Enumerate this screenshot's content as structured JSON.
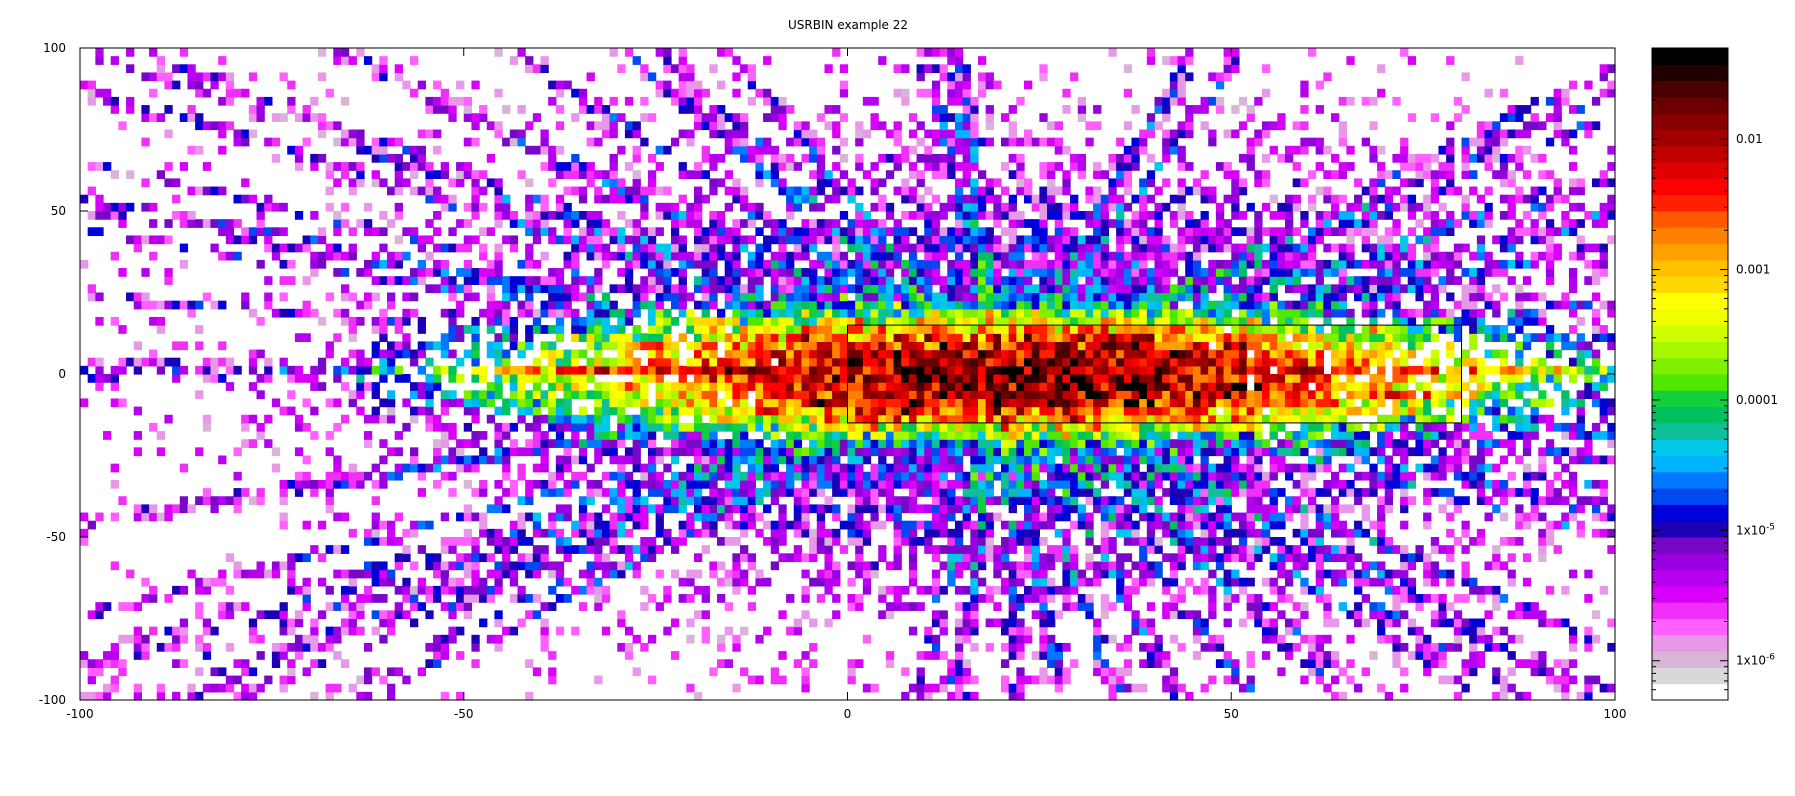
{
  "chart_data": {
    "type": "heatmap",
    "title": "USRBIN example 22",
    "xlabel": "",
    "ylabel": "",
    "xlim": [
      -100,
      100
    ],
    "ylim": [
      -100,
      100
    ],
    "x_ticks": [
      -100,
      -50,
      0,
      50,
      100
    ],
    "x_tick_labels": [
      "-100",
      "-50",
      "0",
      "50",
      "100"
    ],
    "y_ticks": [
      -100,
      -50,
      0,
      50,
      100
    ],
    "y_tick_labels": [
      "-100",
      "-50",
      "0",
      "50",
      "100"
    ],
    "grid": false,
    "color_scale": "log",
    "colorbar": {
      "placement": "right",
      "range": [
        5e-07,
        0.05
      ],
      "ticks": [
        1e-06,
        1e-05,
        0.0001,
        0.001,
        0.01
      ],
      "tick_labels": [
        "1x10-6",
        "1x10-5",
        "0.0001",
        "0.001",
        "0.01"
      ],
      "colors": [
        "#ffffff",
        "#d8d8d8",
        "#d8b4d8",
        "#e898e8",
        "#ff60ff",
        "#f030f8",
        "#d800f8",
        "#b800f0",
        "#9800e0",
        "#7808c8",
        "#1c00b8",
        "#0000d8",
        "#0048f0",
        "#0078ff",
        "#00b4ff",
        "#00c8e8",
        "#10c098",
        "#00c060",
        "#10d040",
        "#50e800",
        "#80f000",
        "#a8f800",
        "#d0ff00",
        "#f0ff00",
        "#ffff00",
        "#ffd800",
        "#ffc000",
        "#ffa000",
        "#ff8000",
        "#ff5800",
        "#ff2000",
        "#ff0000",
        "#e00000",
        "#c00000",
        "#a00000",
        "#880000",
        "#6c0000",
        "#480000",
        "#200000",
        "#000000"
      ]
    },
    "overlays": [
      {
        "type": "rectangle",
        "x": [
          0,
          80
        ],
        "y": [
          -15,
          15
        ]
      }
    ],
    "data_description": "Energy deposition map: 2D histogram on 200x80 bins over x in [-100,100], y in [-100,100]; hotspot near x=0..45, y=0"
  }
}
